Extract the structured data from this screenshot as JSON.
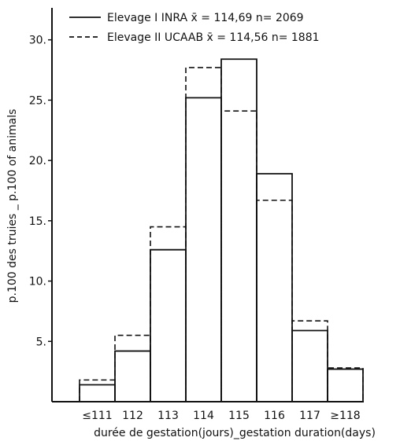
{
  "chart_data": {
    "type": "bar",
    "categories": [
      "≤111",
      "112",
      "113",
      "114",
      "115",
      "116",
      "117",
      "≥118"
    ],
    "series": [
      {
        "name": "Elevage I INRA",
        "legend_label": "Elevage I  INRA  x̄ = 114,69  n= 2069",
        "style": "solid",
        "values": [
          1.4,
          4.2,
          12.6,
          25.2,
          28.4,
          18.9,
          5.9,
          2.7
        ]
      },
      {
        "name": "Elevage II UCAAB",
        "legend_label": "Elevage II  UCAAB  x̄ = 114,56  n= 1881",
        "style": "dashed",
        "values": [
          1.8,
          5.5,
          14.5,
          27.7,
          24.1,
          16.7,
          6.7,
          2.8
        ]
      }
    ],
    "yticks": [
      "5.",
      "10.",
      "15.",
      "20.",
      "25.",
      "30."
    ],
    "ytick_values": [
      5,
      10,
      15,
      20,
      25,
      30
    ],
    "ylim": [
      0,
      32
    ],
    "xlabel": "durée de gestation(jours)_gestation duration(days)",
    "ylabel": "p.100 des truies _ p.100 of animals",
    "title": "",
    "grid": false,
    "legend_position": "top"
  }
}
